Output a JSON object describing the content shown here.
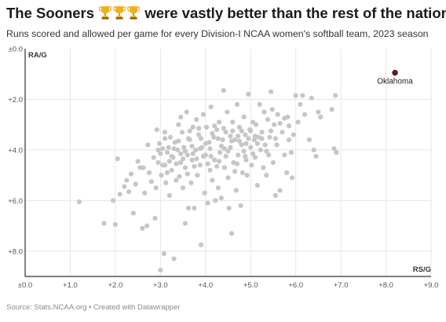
{
  "chart_data": {
    "type": "scatter",
    "title_part1": "The Sooners ",
    "title_part2": " were vastly better than the rest of the nation",
    "subtitle": "Runs scored and allowed per game for every Division-I NCAA women's softball team, 2023 season",
    "source": "Source: Stats.NCAA.org • Created with Datawrapper",
    "xlabel": "RS/G",
    "ylabel": "RA/G",
    "xlim": [
      0,
      9
    ],
    "ylim": [
      0,
      9
    ],
    "y_inverted": true,
    "x_ticks": [
      0,
      1,
      2,
      3,
      4,
      5,
      6,
      7,
      8,
      9
    ],
    "x_tick_labels": [
      "±0.0",
      "+1.0",
      "+2.0",
      "+3.0",
      "+4.0",
      "+5.0",
      "+6.0",
      "+7.0",
      "+8.0",
      "+9.0"
    ],
    "y_ticks": [
      0,
      2,
      4,
      6,
      8
    ],
    "y_tick_labels": [
      "±0.0",
      "+2.0",
      "+4.0",
      "+6.0",
      "+8.0"
    ],
    "grid": true,
    "point_color": "#c6c6c6",
    "highlight_color": "#7b1418",
    "highlight": {
      "label": "Oklahoma",
      "x": 8.2,
      "y": 0.95
    },
    "points": [
      [
        1.2,
        6.05
      ],
      [
        1.75,
        6.9
      ],
      [
        1.95,
        6.0
      ],
      [
        2.0,
        6.95
      ],
      [
        2.05,
        4.35
      ],
      [
        2.1,
        5.75
      ],
      [
        2.2,
        5.45
      ],
      [
        2.25,
        5.2
      ],
      [
        2.3,
        5.65
      ],
      [
        2.35,
        4.95
      ],
      [
        2.4,
        6.5
      ],
      [
        2.45,
        5.35
      ],
      [
        2.5,
        4.45
      ],
      [
        2.55,
        4.7
      ],
      [
        2.6,
        7.1
      ],
      [
        2.62,
        4.7
      ],
      [
        2.65,
        5.7
      ],
      [
        2.7,
        7.0
      ],
      [
        2.72,
        3.8
      ],
      [
        2.75,
        4.9
      ],
      [
        2.8,
        5.25
      ],
      [
        2.85,
        4.3
      ],
      [
        2.88,
        6.7
      ],
      [
        2.9,
        5.5
      ],
      [
        2.92,
        3.2
      ],
      [
        2.95,
        4.5
      ],
      [
        2.98,
        3.75
      ],
      [
        3.0,
        8.75
      ],
      [
        3.02,
        5.0
      ],
      [
        3.05,
        3.95
      ],
      [
        3.08,
        8.1
      ],
      [
        3.1,
        4.6
      ],
      [
        3.1,
        3.3
      ],
      [
        3.12,
        5.3
      ],
      [
        3.15,
        4.1
      ],
      [
        3.18,
        3.9
      ],
      [
        3.2,
        5.8
      ],
      [
        3.22,
        3.5
      ],
      [
        3.25,
        4.8
      ],
      [
        3.28,
        4.3
      ],
      [
        3.3,
        8.3
      ],
      [
        3.32,
        3.7
      ],
      [
        3.35,
        5.2
      ],
      [
        3.38,
        4.0
      ],
      [
        3.4,
        3.0
      ],
      [
        3.42,
        5.05
      ],
      [
        3.45,
        2.7
      ],
      [
        3.45,
        4.5
      ],
      [
        3.48,
        3.3
      ],
      [
        3.5,
        5.5
      ],
      [
        3.52,
        3.9
      ],
      [
        3.55,
        4.7
      ],
      [
        3.55,
        6.9
      ],
      [
        3.58,
        2.5
      ],
      [
        3.6,
        4.2
      ],
      [
        3.62,
        6.3
      ],
      [
        3.65,
        3.6
      ],
      [
        3.68,
        5.3
      ],
      [
        3.7,
        4.4
      ],
      [
        3.72,
        3.1
      ],
      [
        3.75,
        6.3
      ],
      [
        3.78,
        4.0
      ],
      [
        3.8,
        2.8
      ],
      [
        3.82,
        5.0
      ],
      [
        3.85,
        3.4
      ],
      [
        3.88,
        4.6
      ],
      [
        3.9,
        7.75
      ],
      [
        3.92,
        3.9
      ],
      [
        3.95,
        2.6
      ],
      [
        3.98,
        5.7
      ],
      [
        4.0,
        4.2
      ],
      [
        4.02,
        3.1
      ],
      [
        4.05,
        6.1
      ],
      [
        4.08,
        3.7
      ],
      [
        4.1,
        4.8
      ],
      [
        4.12,
        2.3
      ],
      [
        4.15,
        5.2
      ],
      [
        4.18,
        3.5
      ],
      [
        4.2,
        4.4
      ],
      [
        4.22,
        6.0
      ],
      [
        4.25,
        3.2
      ],
      [
        4.28,
        5.5
      ],
      [
        4.3,
        2.9
      ],
      [
        4.32,
        4.1
      ],
      [
        4.35,
        5.9
      ],
      [
        4.38,
        3.6
      ],
      [
        4.4,
        1.65
      ],
      [
        4.42,
        4.7
      ],
      [
        4.45,
        3.3
      ],
      [
        4.48,
        2.5
      ],
      [
        4.5,
        5.1
      ],
      [
        4.52,
        6.3
      ],
      [
        4.55,
        3.9
      ],
      [
        4.58,
        7.3
      ],
      [
        4.6,
        2.9
      ],
      [
        4.62,
        4.5
      ],
      [
        4.65,
        3.6
      ],
      [
        4.68,
        5.6
      ],
      [
        4.7,
        2.2
      ],
      [
        4.72,
        4.2
      ],
      [
        4.75,
        3.1
      ],
      [
        4.78,
        6.2
      ],
      [
        4.8,
        3.8
      ],
      [
        4.82,
        4.9
      ],
      [
        4.85,
        2.7
      ],
      [
        4.88,
        3.4
      ],
      [
        4.9,
        4.4
      ],
      [
        4.92,
        5.0
      ],
      [
        4.95,
        1.8
      ],
      [
        4.98,
        3.2
      ],
      [
        5.0,
        3.9
      ],
      [
        5.02,
        4.6
      ],
      [
        5.05,
        2.9
      ],
      [
        5.08,
        3.6
      ],
      [
        5.1,
        4.3
      ],
      [
        5.12,
        3.0
      ],
      [
        5.15,
        5.4
      ],
      [
        5.18,
        3.5
      ],
      [
        5.2,
        2.2
      ],
      [
        5.22,
        4.0
      ],
      [
        5.25,
        3.3
      ],
      [
        5.28,
        4.7
      ],
      [
        5.3,
        2.5
      ],
      [
        5.32,
        3.8
      ],
      [
        5.35,
        5.0
      ],
      [
        5.38,
        2.8
      ],
      [
        5.4,
        4.2
      ],
      [
        5.42,
        3.5
      ],
      [
        5.45,
        1.7
      ],
      [
        5.48,
        2.4
      ],
      [
        5.5,
        4.5
      ],
      [
        5.52,
        3.0
      ],
      [
        5.55,
        5.8
      ],
      [
        5.58,
        3.8
      ],
      [
        5.6,
        2.6
      ],
      [
        5.65,
        5.6
      ],
      [
        5.7,
        3.3
      ],
      [
        5.75,
        4.2
      ],
      [
        5.8,
        4.9
      ],
      [
        5.82,
        2.7
      ],
      [
        5.85,
        3.6
      ],
      [
        5.9,
        4.1
      ],
      [
        5.92,
        5.1
      ],
      [
        5.95,
        3.4
      ],
      [
        6.0,
        1.85
      ],
      [
        6.05,
        2.9
      ],
      [
        6.1,
        2.2
      ],
      [
        6.15,
        1.85
      ],
      [
        6.2,
        2.6
      ],
      [
        6.3,
        3.6
      ],
      [
        6.35,
        1.95
      ],
      [
        6.4,
        4.0
      ],
      [
        6.45,
        4.25
      ],
      [
        6.5,
        2.5
      ],
      [
        6.55,
        2.7
      ],
      [
        6.8,
        2.4
      ],
      [
        6.85,
        3.95
      ],
      [
        6.88,
        1.85
      ],
      [
        6.9,
        4.1
      ],
      [
        3.15,
        4.9
      ],
      [
        3.25,
        4.25
      ],
      [
        3.35,
        4.55
      ],
      [
        3.45,
        4.15
      ],
      [
        3.6,
        4.95
      ],
      [
        3.7,
        3.85
      ],
      [
        3.8,
        4.35
      ],
      [
        3.9,
        3.55
      ],
      [
        4.0,
        3.75
      ],
      [
        4.05,
        4.55
      ],
      [
        4.15,
        3.35
      ],
      [
        4.25,
        4.65
      ],
      [
        4.35,
        3.85
      ],
      [
        4.45,
        4.25
      ],
      [
        4.55,
        3.45
      ],
      [
        4.65,
        4.85
      ],
      [
        4.75,
        3.65
      ],
      [
        4.85,
        4.05
      ],
      [
        4.95,
        3.55
      ],
      [
        5.05,
        4.15
      ],
      [
        5.15,
        3.75
      ],
      [
        3.0,
        4.15
      ],
      [
        3.1,
        3.55
      ],
      [
        3.2,
        4.45
      ],
      [
        3.4,
        3.65
      ],
      [
        3.5,
        4.35
      ],
      [
        3.65,
        3.25
      ],
      [
        3.75,
        4.65
      ],
      [
        3.85,
        3.15
      ],
      [
        3.95,
        4.25
      ],
      [
        4.1,
        3.95
      ],
      [
        4.2,
        3.05
      ],
      [
        4.3,
        4.45
      ],
      [
        4.4,
        3.15
      ],
      [
        4.5,
        4.05
      ],
      [
        4.6,
        3.25
      ],
      [
        4.7,
        4.55
      ],
      [
        4.8,
        3.25
      ],
      [
        4.9,
        3.75
      ],
      [
        5.0,
        3.25
      ],
      [
        5.1,
        3.45
      ],
      [
        2.95,
        4.0
      ],
      [
        3.05,
        4.6
      ],
      [
        3.3,
        3.95
      ],
      [
        3.55,
        4.05
      ],
      [
        3.62,
        3.55
      ],
      [
        3.72,
        4.15
      ],
      [
        3.88,
        3.95
      ],
      [
        4.12,
        4.25
      ],
      [
        4.28,
        3.55
      ],
      [
        4.42,
        3.95
      ],
      [
        4.58,
        3.65
      ],
      [
        4.72,
        3.45
      ],
      [
        4.88,
        4.25
      ],
      [
        5.25,
        3.55
      ],
      [
        5.35,
        4.05
      ],
      [
        5.45,
        3.25
      ],
      [
        5.55,
        3.55
      ],
      [
        5.65,
        2.95
      ],
      [
        5.75,
        2.75
      ],
      [
        5.85,
        3.05
      ]
    ]
  }
}
